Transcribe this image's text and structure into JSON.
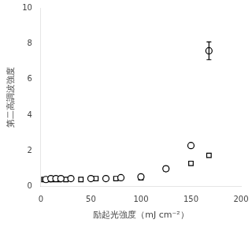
{
  "chart_data": {
    "type": "scatter",
    "xlabel": "励起光強度（mJ cm⁻²）",
    "ylabel": "第二高調波強度",
    "xlim": [
      0,
      200
    ],
    "ylim": [
      0,
      10
    ],
    "xticks": [
      0,
      50,
      100,
      150,
      200
    ],
    "yticks": [
      0,
      2,
      4,
      6,
      8,
      10
    ],
    "grid": false,
    "series": [
      {
        "color": "#000000",
        "marker": "circle",
        "x": [
          5,
          10,
          15,
          20,
          30,
          50,
          65,
          80,
          100,
          125,
          150,
          168
        ],
        "values": [
          0.4,
          0.45,
          0.45,
          0.45,
          0.45,
          0.45,
          0.45,
          0.5,
          0.55,
          1.0,
          2.3,
          7.6
        ],
        "errors": [
          0.0,
          0.0,
          0.0,
          0.0,
          0.0,
          0.0,
          0.0,
          0.0,
          0.0,
          0.0,
          0.0,
          0.5
        ]
      },
      {
        "color": "#000000",
        "marker": "square",
        "x": [
          3,
          8,
          12,
          18,
          25,
          40,
          55,
          75,
          100,
          125,
          150,
          168
        ],
        "values": [
          0.4,
          0.4,
          0.4,
          0.4,
          0.4,
          0.4,
          0.45,
          0.45,
          0.5,
          1.0,
          1.3,
          1.75
        ]
      }
    ]
  }
}
